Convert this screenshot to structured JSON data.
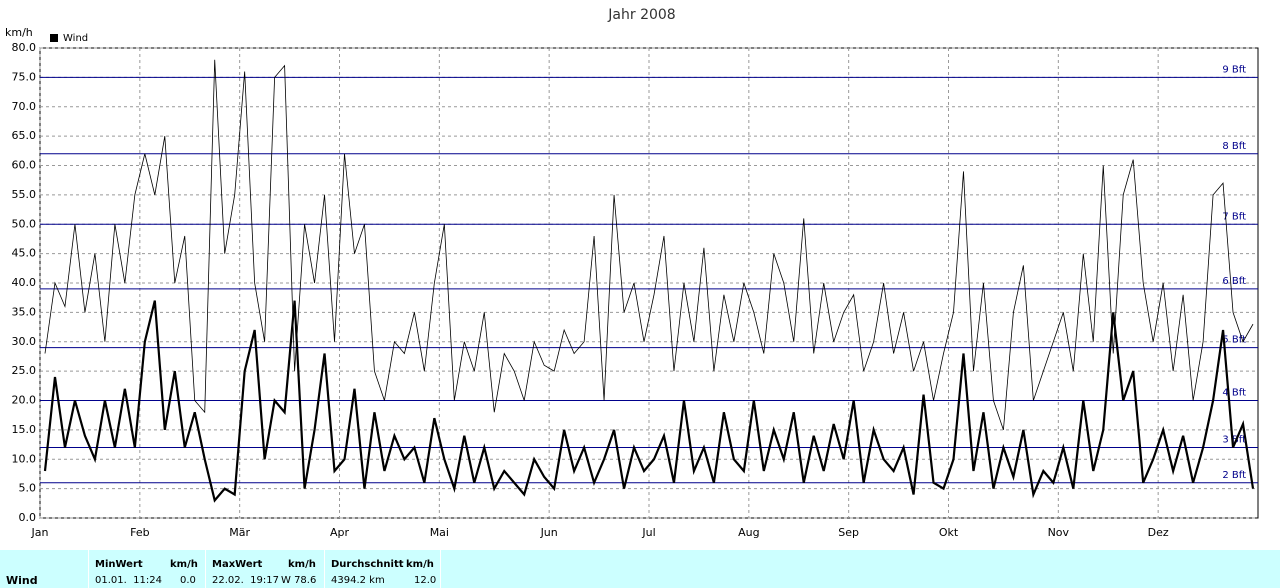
{
  "chart_data": {
    "type": "line",
    "title": "Jahr 2008",
    "y_unit": "km/h",
    "categories": [
      "Jan",
      null,
      null,
      null,
      null,
      null,
      null,
      null,
      null,
      null,
      "Feb",
      null,
      null,
      null,
      null,
      null,
      null,
      null,
      null,
      null,
      "Mär",
      null,
      null,
      null,
      null,
      null,
      null,
      null,
      null,
      null,
      "Apr",
      null,
      null,
      null,
      null,
      null,
      null,
      null,
      null,
      null,
      "Mai",
      null,
      null,
      null,
      null,
      null,
      null,
      null,
      null,
      null,
      null,
      "Jun",
      null,
      null,
      null,
      null,
      null,
      null,
      null,
      null,
      null,
      "Jul",
      null,
      null,
      null,
      null,
      null,
      null,
      null,
      null,
      null,
      "Aug",
      null,
      null,
      null,
      null,
      null,
      null,
      null,
      null,
      null,
      "Sep",
      null,
      null,
      null,
      null,
      null,
      null,
      null,
      null,
      null,
      "Okt",
      null,
      null,
      null,
      null,
      null,
      null,
      null,
      null,
      null,
      null,
      "Nov",
      null,
      null,
      null,
      null,
      null,
      null,
      null,
      null,
      null,
      "Dez",
      null,
      null,
      null,
      null,
      null,
      null,
      null,
      null,
      null
    ],
    "series": [
      {
        "name": "Wind",
        "color": "#000000",
        "width": 2.2,
        "values": [
          8,
          24,
          12,
          20,
          14,
          10,
          20,
          12,
          22,
          12,
          30,
          37,
          15,
          25,
          12,
          18,
          10,
          3,
          5,
          4,
          25,
          32,
          10,
          20,
          18,
          37,
          5,
          15,
          28,
          8,
          10,
          22,
          5,
          18,
          8,
          14,
          10,
          12,
          6,
          17,
          10,
          5,
          14,
          6,
          12,
          5,
          8,
          6,
          4,
          10,
          7,
          5,
          15,
          8,
          12,
          6,
          10,
          15,
          5,
          12,
          8,
          10,
          14,
          6,
          20,
          8,
          12,
          6,
          18,
          10,
          8,
          20,
          8,
          15,
          10,
          18,
          6,
          14,
          8,
          16,
          10,
          20,
          6,
          15,
          10,
          8,
          12,
          4,
          21,
          6,
          5,
          10,
          28,
          8,
          18,
          5,
          12,
          7,
          15,
          4,
          8,
          6,
          12,
          5,
          20,
          8,
          15,
          35,
          20,
          25,
          6,
          10,
          15,
          8,
          14,
          6,
          12,
          20,
          32,
          12,
          16,
          5
        ]
      },
      {
        "color": "#000000",
        "width": 0.8,
        "values": [
          28,
          40,
          36,
          50,
          35,
          45,
          30,
          50,
          40,
          55,
          62,
          55,
          65,
          40,
          48,
          20,
          18,
          78,
          45,
          55,
          76,
          40,
          30,
          75,
          77,
          25,
          50,
          40,
          55,
          30,
          62,
          45,
          50,
          25,
          20,
          30,
          28,
          35,
          25,
          40,
          50,
          20,
          30,
          25,
          35,
          18,
          28,
          25,
          20,
          30,
          26,
          25,
          32,
          28,
          30,
          48,
          20,
          55,
          35,
          40,
          30,
          38,
          48,
          25,
          40,
          30,
          46,
          25,
          38,
          30,
          40,
          35,
          28,
          45,
          40,
          30,
          51,
          28,
          40,
          30,
          35,
          38,
          25,
          30,
          40,
          28,
          35,
          25,
          30,
          20,
          28,
          35,
          59,
          25,
          40,
          20,
          15,
          35,
          43,
          20,
          25,
          30,
          35,
          25,
          45,
          30,
          60,
          28,
          55,
          61,
          40,
          30,
          40,
          25,
          38,
          20,
          30,
          55,
          57,
          35,
          30,
          33
        ]
      }
    ],
    "ylim": [
      0,
      80
    ],
    "yticks": [
      {
        "value": 0,
        "label": "0.0"
      },
      {
        "value": 5,
        "label": "5.0"
      },
      {
        "value": 10,
        "label": "10.0"
      },
      {
        "value": 15,
        "label": "15.0"
      },
      {
        "value": 20,
        "label": "20.0"
      },
      {
        "value": 25,
        "label": "25.0"
      },
      {
        "value": 30,
        "label": "30.0"
      },
      {
        "value": 35,
        "label": "35.0"
      },
      {
        "value": 40,
        "label": "40.0"
      },
      {
        "value": 45,
        "label": "45.0"
      },
      {
        "value": 50,
        "label": "50.0"
      },
      {
        "value": 55,
        "label": "55.0"
      },
      {
        "value": 60,
        "label": "60.0"
      },
      {
        "value": 65,
        "label": "65.0"
      },
      {
        "value": 70,
        "label": "70.0"
      },
      {
        "value": 75,
        "label": "75.0"
      },
      {
        "value": 80,
        "label": "80.0"
      }
    ],
    "grid": true,
    "legend": "top-left",
    "bft_lines": [
      {
        "value": 6,
        "label": "2 Bft"
      },
      {
        "value": 12,
        "label": "3 Bft"
      },
      {
        "value": 20,
        "label": "4 Bft"
      },
      {
        "value": 29,
        "label": "5 Bft"
      },
      {
        "value": 39,
        "label": "6 Bft"
      },
      {
        "value": 50,
        "label": "7 Bft"
      },
      {
        "value": 62,
        "label": "8 Bft"
      },
      {
        "value": 75,
        "label": "9 Bft"
      }
    ],
    "bft_color": "#00008b"
  },
  "table": {
    "row_label": "Wind",
    "columns": [
      {
        "header": "MinWert",
        "unit": "km/h",
        "when": "01.01.  11:24",
        "value": "0.0"
      },
      {
        "header": "MaxWert",
        "unit": "km/h",
        "when": "22.02.  19:17",
        "value": "W 78.6"
      },
      {
        "header": "Durchschnitt",
        "unit": "km/h",
        "when": "4394.2 km",
        "value": "12.0"
      }
    ]
  }
}
